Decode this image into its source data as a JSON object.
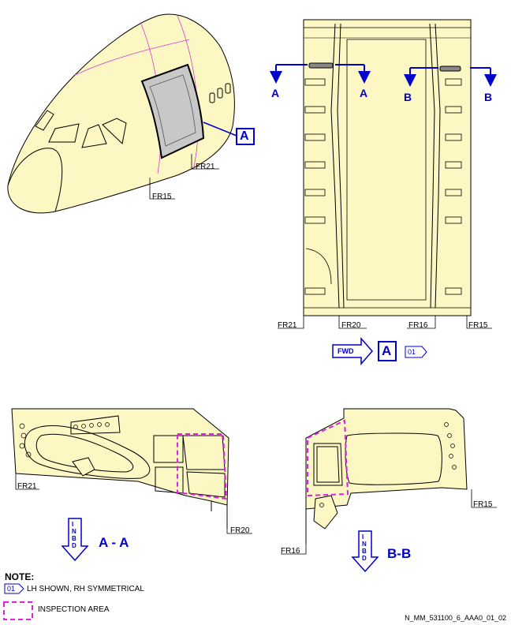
{
  "view_label": "A",
  "frames": {
    "fr21": "FR21",
    "fr15": "FR15",
    "fr20": "FR20",
    "fr16": "FR16"
  },
  "sections": {
    "a": "A",
    "b": "B",
    "aa": "A - A",
    "bb": "B-B"
  },
  "fwd_label": "FWD",
  "inbd_letters": [
    "I",
    "N",
    "B",
    "D"
  ],
  "note_tag": "01",
  "notes": {
    "title": "NOTE:",
    "lh_shown": "LH SHOWN, RH SYMMETRICAL",
    "inspection_area": "INSPECTION AREA"
  },
  "doc_ref": "N_MM_531100_6_AAA0_01_02",
  "colors": {
    "structure_fill": "#fdf7c3",
    "callout_blue": "#0000c8",
    "inspection_magenta": "#e020e0",
    "panel_gray": "#c8c8c8"
  }
}
